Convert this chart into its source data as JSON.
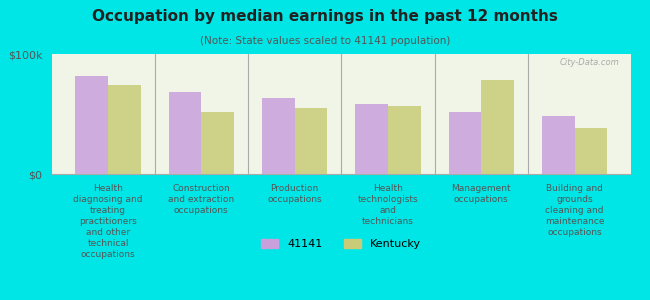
{
  "title": "Occupation by median earnings in the past 12 months",
  "subtitle": "(Note: State values scaled to 41141 population)",
  "background_color": "#00e5e5",
  "plot_bg_color": "#f0f5e8",
  "categories": [
    "Health\ndiagnosing and\ntreating\npractitioners\nand other\ntechnical\noccupations",
    "Construction\nand extraction\noccupations",
    "Production\noccupations",
    "Health\ntechnologists\nand\ntechnicians",
    "Management\noccupations",
    "Building and\ngrounds\ncleaning and\nmaintenance\noccupations"
  ],
  "values_41141": [
    82000,
    68000,
    63000,
    58000,
    52000,
    48000
  ],
  "values_kentucky": [
    74000,
    52000,
    55000,
    57000,
    78000,
    38000
  ],
  "color_41141": "#c9a0dc",
  "color_kentucky": "#c8cc78",
  "ylim": [
    0,
    100000
  ],
  "ytick_labels": [
    "$0",
    "$100k"
  ],
  "legend_label_41141": "41141",
  "legend_label_kentucky": "Kentucky",
  "bar_width": 0.35,
  "watermark": "City-Data.com"
}
